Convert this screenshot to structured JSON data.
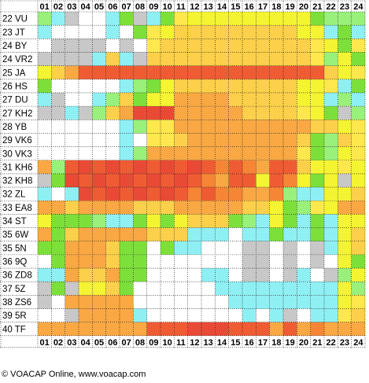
{
  "chart_data": {
    "type": "heatmap",
    "title": "",
    "x_labels": [
      "01",
      "02",
      "03",
      "04",
      "05",
      "06",
      "07",
      "08",
      "09",
      "10",
      "11",
      "12",
      "13",
      "14",
      "15",
      "16",
      "17",
      "18",
      "19",
      "20",
      "21",
      "22",
      "23",
      "24"
    ],
    "y_labels": [
      "22 VU",
      "23 JT",
      "24 BY",
      "24 VR2",
      "25 JA",
      "26 HS",
      "27 DU",
      "27 KH2",
      "28 YB",
      "29 VK6",
      "30 VK3",
      "31 KH6",
      "32 KH8",
      "32 ZL",
      "33 EA8",
      "34 ST",
      "35 6W",
      "35 5N",
      "36 9Q",
      "36 ZD8",
      "37 5Z",
      "38 ZS6",
      "39 5R",
      "40 TF"
    ],
    "legend": {
      "K": "#ffffff",
      "X": "#c8c8c8",
      "C": "#8ff0f4",
      "G": "#7de03a",
      "T": "#99f07a",
      "Y": "#f4f432",
      "L": "#ffe84d",
      "A": "#fcd04a",
      "O": "#f9a843",
      "D": "#f68536",
      "R": "#ef5c33",
      "E": "#e94a36"
    },
    "rows": [
      "TCXKKCGXCGLYYYYYYYYYGTTT",
      "CKKKKCKGLYAAAAAAAAAYYCGC",
      "KXXXXKXKLAAAAAAAAAAALYGL",
      "XXXXCACXAAAAAAAAAAAALTYG",
      "YAORRRRRRRRRRRRRRRRRRAYL",
      "GKKKKKCTGYAAAAAAAAAYYLCG",
      "CXKKCTAGYYOOOOAAAAAYYCTC",
      "XXCXTAOEEEOOOOOAAAALYGXT",
      "KKKKKKCTLLOOOOOOOOOOAAYL",
      "KKKKKKCKLLAOOOOOOOOAGTAL",
      "KKKKKKCTOOOOOOOOOOOLGTYL",
      "OTRERERERERERDRDORRAYYLY",
      "XGERERERERERDORRYRDYGYXY",
      "CKCERERERERDRDDOODTCCYYA",
      "OOAOOOOAAAOOOOOAAYGTLYOO",
      "YGGGTCCGYGYAAAGTCYGCGCYY",
      "OGAOOOOOAAACCCKCCGCCGCYA",
      "GGOOOAGGKGCCKKKXXKXKXCYA",
      "KGOOOAGGKKKKKKKXXKXKXKYG",
      "CCOAAOGGKKKKCCKXXKXCKXTY",
      "XGXYYAGKKKKKKCCCCCCCCCYT",
      "XKOOOOOKKKKKKKCCCCCCCCYL",
      "KKXOOOOCKKKKKKKCKCXKCCLA",
      "OOOOOOOORRREEERRRORODOOO"
    ],
    "grid": true,
    "legend_placement": "none"
  },
  "footer": {
    "credit": "© VOACAP Online, www.voacap.com"
  },
  "colors": {
    "background": "#ffffff",
    "grid_line": "#000000",
    "text": "#000000"
  }
}
